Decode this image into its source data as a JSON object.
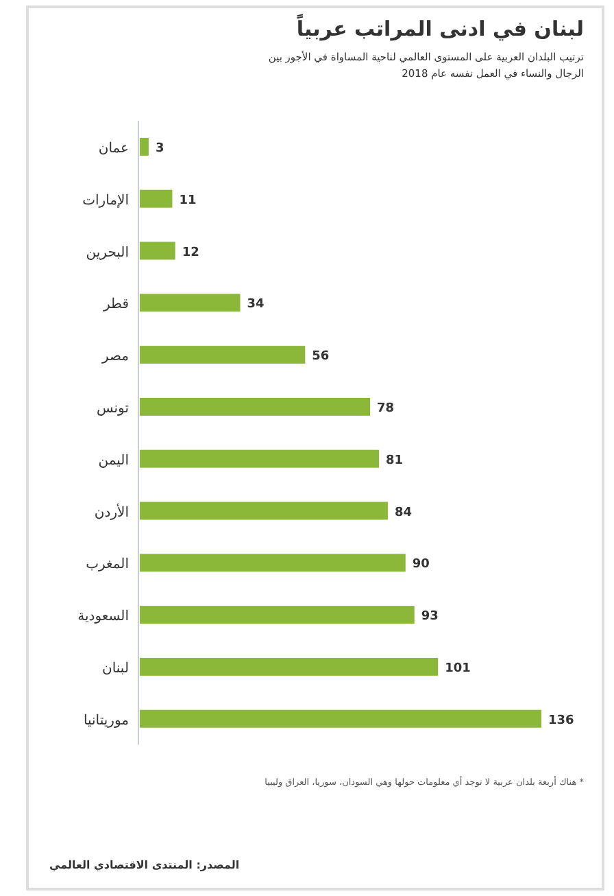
{
  "chart_data": {
    "type": "bar",
    "orientation": "horizontal",
    "title": "لبنان في ادنى المراتب عربياً",
    "subtitle": "ترتيب البلدان العربية على المستوى العالمي لناحية المساواة في الأجور بين الرجال والنساء في العمل نفسه عام 2018",
    "categories": [
      "عمان",
      "الإمارات",
      "البحرين",
      "قطر",
      "مصر",
      "تونس",
      "اليمن",
      "الأردن",
      "المغرب",
      "السعودية",
      "لبنان",
      "موريتانيا"
    ],
    "values": [
      3,
      11,
      12,
      34,
      56,
      78,
      81,
      84,
      90,
      93,
      101,
      136
    ],
    "color": "#8cb83a",
    "data_labels": true,
    "annotations": [
      "* هناك أربعة بلدان عربية لا توجد أي معلومات حولها وهي السودان، سوريا، العراق وليبيا",
      "المصدر: المنتدى الاقتصادي العالمي"
    ]
  }
}
